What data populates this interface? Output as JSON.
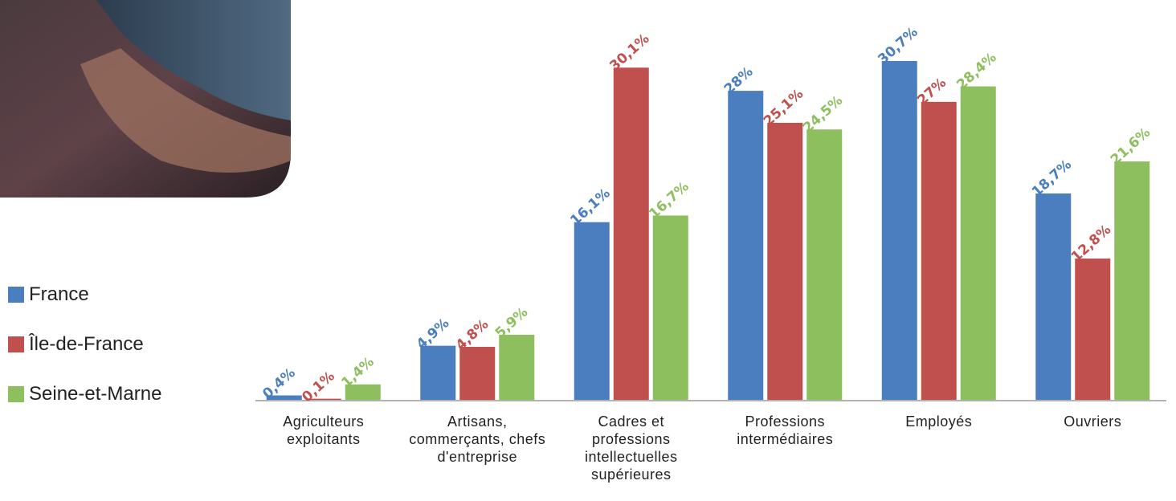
{
  "chart_data": {
    "type": "bar",
    "categories": [
      "Agriculteurs exploitants",
      "Artisans, commerçants, chefs d'entreprise",
      "Cadres et professions intellectuelles supérieures",
      "Professions intermédiaires",
      "Employés",
      "Ouvriers"
    ],
    "series": [
      {
        "name": "France",
        "color": "#4a7ebf",
        "values": [
          0.4,
          4.9,
          16.1,
          28,
          30.7,
          18.7
        ],
        "value_labels": [
          "0,4%",
          "4,9%",
          "16,1%",
          "28%",
          "30,7%",
          "18,7%"
        ]
      },
      {
        "name": "Île-de-France",
        "color": "#c0504d",
        "values": [
          0.1,
          4.8,
          30.1,
          25.1,
          27,
          12.8
        ],
        "value_labels": [
          "0,1%",
          "4,8%",
          "30,1%",
          "25,1%",
          "27%",
          "12,8%"
        ]
      },
      {
        "name": "Seine-et-Marne",
        "color": "#8ebf5f",
        "values": [
          1.4,
          5.9,
          16.7,
          24.5,
          28.4,
          21.6
        ],
        "value_labels": [
          "1,4%",
          "5,9%",
          "16,7%",
          "24,5%",
          "28,4%",
          "21,6%"
        ]
      }
    ]
  }
}
